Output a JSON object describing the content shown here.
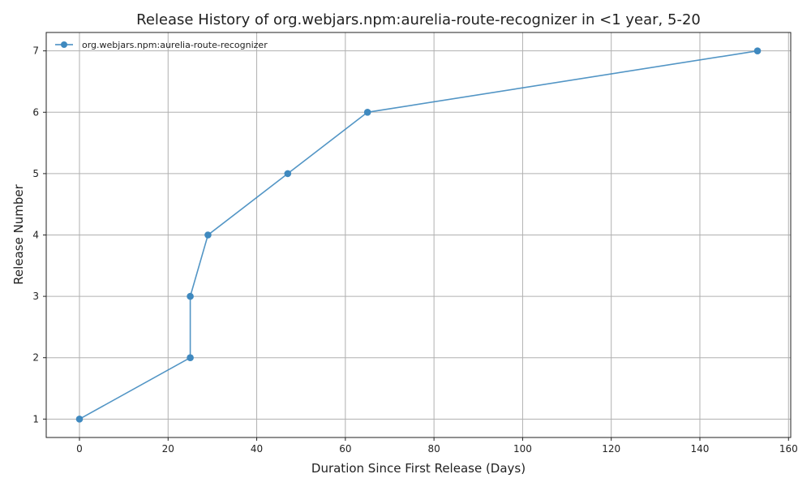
{
  "chart_data": {
    "type": "line",
    "title": "Release History of org.webjars.npm:aurelia-route-recognizer in <1 year, 5-20",
    "xlabel": "Duration Since First Release (Days)",
    "ylabel": "Release Number",
    "xlim": [
      -7.5,
      160.5
    ],
    "ylim": [
      0.7,
      7.3
    ],
    "xticks": [
      0,
      20,
      40,
      60,
      80,
      100,
      120,
      140,
      160
    ],
    "yticks": [
      1,
      2,
      3,
      4,
      5,
      6,
      7
    ],
    "grid": true,
    "legend_position": "top-left",
    "series": [
      {
        "name": "org.webjars.npm:aurelia-route-recognizer",
        "color": "#3f89bf",
        "marker": "circle",
        "x": [
          0,
          25,
          25,
          29,
          47,
          65,
          153
        ],
        "y": [
          1,
          2,
          3,
          4,
          5,
          6,
          7
        ]
      }
    ]
  }
}
